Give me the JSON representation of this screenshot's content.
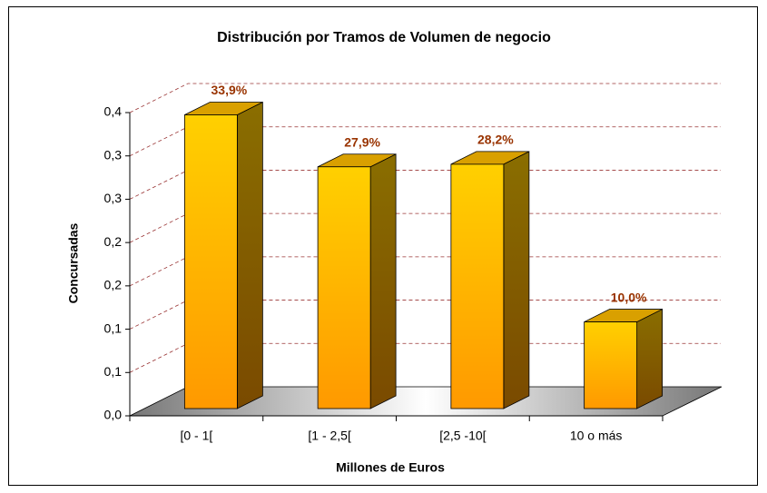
{
  "chart_data": {
    "type": "bar3d",
    "title": "Distribución por Tramos de Volumen de negocio",
    "xlabel": "Millones de Euros",
    "ylabel": "Concursadas",
    "categories": [
      "[0 - 1[",
      "[1 - 2,5[",
      "[2,5 -10[",
      "10 o más"
    ],
    "values": [
      0.339,
      0.279,
      0.282,
      0.1
    ],
    "value_labels": [
      "33,9%",
      "27,9%",
      "28,2%",
      "10,0%"
    ],
    "color": "#ffcc00",
    "ylim": [
      0,
      0.35
    ],
    "yticks": [
      {
        "value": 0,
        "label": "0,0"
      },
      {
        "value": 0.05,
        "label": "0,1"
      },
      {
        "value": 0.1,
        "label": "0,1"
      },
      {
        "value": 0.15,
        "label": "0,2"
      },
      {
        "value": 0.2,
        "label": "0,2"
      },
      {
        "value": 0.25,
        "label": "0,3"
      },
      {
        "value": 0.3,
        "label": "0,3"
      },
      {
        "value": 0.35,
        "label": "0,4"
      }
    ],
    "grid": true
  }
}
